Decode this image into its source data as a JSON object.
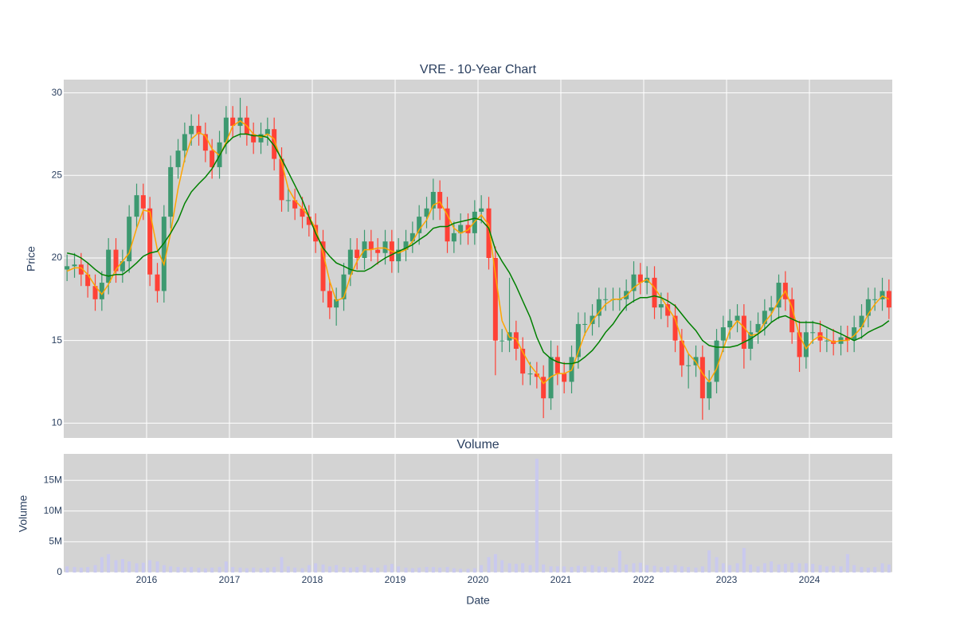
{
  "chart_data": [
    {
      "type": "candlestick",
      "title": "VRE - 10-Year Chart",
      "ylabel": "Price",
      "increasing_color": "#3d9970",
      "decreasing_color": "#ff4136",
      "background": "#d3d3d3",
      "grid": true,
      "xlim": [
        2015.0,
        2025.0
      ],
      "xticks": [
        2016,
        2017,
        2018,
        2019,
        2020,
        2021,
        2022,
        2023,
        2024
      ],
      "ylim": [
        9.1,
        30.8
      ],
      "yticks": [
        10,
        15,
        20,
        25,
        30
      ],
      "x": [
        2015.04,
        2015.13,
        2015.21,
        2015.29,
        2015.38,
        2015.46,
        2015.54,
        2015.63,
        2015.71,
        2015.79,
        2015.88,
        2015.96,
        2016.04,
        2016.13,
        2016.21,
        2016.29,
        2016.38,
        2016.46,
        2016.54,
        2016.63,
        2016.71,
        2016.79,
        2016.88,
        2016.96,
        2017.04,
        2017.13,
        2017.21,
        2017.29,
        2017.38,
        2017.46,
        2017.54,
        2017.63,
        2017.71,
        2017.79,
        2017.88,
        2017.96,
        2018.04,
        2018.13,
        2018.21,
        2018.29,
        2018.38,
        2018.46,
        2018.54,
        2018.63,
        2018.71,
        2018.79,
        2018.88,
        2018.96,
        2019.04,
        2019.13,
        2019.21,
        2019.29,
        2019.38,
        2019.46,
        2019.54,
        2019.63,
        2019.71,
        2019.79,
        2019.88,
        2019.96,
        2020.04,
        2020.13,
        2020.21,
        2020.29,
        2020.38,
        2020.46,
        2020.54,
        2020.63,
        2020.71,
        2020.79,
        2020.88,
        2020.96,
        2021.04,
        2021.13,
        2021.21,
        2021.29,
        2021.38,
        2021.46,
        2021.54,
        2021.63,
        2021.71,
        2021.79,
        2021.88,
        2021.96,
        2022.04,
        2022.13,
        2022.21,
        2022.29,
        2022.38,
        2022.46,
        2022.54,
        2022.63,
        2022.71,
        2022.79,
        2022.88,
        2022.96,
        2023.04,
        2023.13,
        2023.21,
        2023.29,
        2023.38,
        2023.46,
        2023.54,
        2023.63,
        2023.71,
        2023.79,
        2023.88,
        2023.96,
        2024.04,
        2024.13,
        2024.21,
        2024.29,
        2024.38,
        2024.46,
        2024.54,
        2024.63,
        2024.71,
        2024.79,
        2024.88,
        2024.96
      ],
      "open": [
        19.3,
        19.5,
        19.6,
        19.0,
        18.3,
        17.5,
        18.5,
        20.5,
        19.2,
        19.8,
        22.5,
        23.8,
        23.0,
        19.0,
        18.0,
        22.5,
        25.5,
        26.5,
        27.5,
        28.0,
        27.5,
        26.5,
        25.5,
        27.0,
        28.5,
        28.0,
        28.5,
        27.5,
        27.0,
        27.5,
        27.8,
        26.0,
        23.5,
        23.5,
        23.0,
        22.5,
        22.0,
        21.0,
        18.0,
        17.0,
        17.5,
        19.0,
        20.5,
        20.0,
        21.0,
        20.5,
        20.3,
        21.0,
        19.8,
        20.5,
        21.0,
        21.5,
        22.5,
        23.0,
        24.0,
        23.0,
        21.0,
        21.5,
        22.0,
        21.5,
        22.8,
        23.0,
        20.0,
        15.0,
        15.0,
        15.5,
        14.5,
        13.0,
        13.0,
        12.8,
        11.5,
        14.0,
        13.0,
        12.5,
        14.0,
        16.0,
        16.0,
        16.5,
        17.5,
        17.5,
        17.5,
        17.5,
        18.0,
        19.0,
        18.5,
        18.8,
        17.0,
        17.2,
        16.5,
        15.0,
        13.5,
        13.5,
        14.0,
        11.5,
        12.5,
        15.0,
        15.8,
        16.2,
        16.5,
        14.5,
        15.5,
        16.0,
        16.8,
        17.0,
        18.5,
        17.5,
        15.5,
        14.0,
        15.5,
        15.5,
        15.0,
        15.0,
        14.8,
        15.2,
        15.0,
        15.8,
        16.5,
        17.5,
        17.5,
        18.0
      ],
      "high": [
        20.2,
        20.3,
        20.3,
        19.7,
        19.0,
        19.2,
        21.2,
        21.2,
        20.5,
        23.2,
        24.5,
        24.5,
        23.7,
        19.7,
        23.2,
        26.2,
        27.2,
        28.2,
        28.7,
        28.7,
        28.2,
        27.2,
        27.7,
        29.2,
        29.2,
        29.7,
        29.2,
        28.2,
        28.2,
        28.5,
        28.5,
        26.7,
        24.2,
        24.2,
        23.7,
        23.2,
        22.7,
        21.7,
        18.7,
        18.2,
        19.7,
        21.2,
        21.2,
        21.7,
        21.7,
        21.2,
        21.7,
        21.7,
        21.2,
        21.7,
        22.2,
        23.2,
        23.7,
        24.8,
        24.7,
        23.7,
        22.2,
        22.7,
        22.7,
        23.5,
        23.8,
        23.7,
        20.7,
        15.7,
        18.8,
        16.2,
        15.2,
        13.7,
        13.7,
        13.5,
        15.0,
        14.7,
        13.7,
        14.7,
        16.7,
        16.7,
        17.2,
        18.2,
        18.2,
        18.2,
        18.2,
        18.7,
        19.8,
        19.7,
        19.5,
        19.5,
        17.9,
        17.9,
        17.2,
        15.7,
        14.2,
        14.7,
        14.7,
        13.2,
        15.7,
        16.5,
        16.9,
        17.2,
        17.2,
        16.2,
        16.7,
        17.5,
        17.7,
        19.0,
        19.2,
        18.2,
        16.2,
        16.2,
        16.2,
        16.2,
        15.7,
        15.7,
        15.9,
        15.9,
        16.5,
        17.2,
        18.2,
        18.2,
        18.8,
        18.7
      ],
      "low": [
        18.6,
        18.8,
        18.3,
        17.6,
        16.8,
        16.8,
        17.8,
        18.5,
        18.5,
        19.1,
        21.8,
        22.3,
        18.3,
        17.3,
        17.3,
        21.8,
        24.8,
        25.8,
        26.8,
        26.8,
        25.8,
        24.8,
        24.8,
        26.3,
        27.3,
        27.3,
        26.8,
        26.3,
        26.3,
        26.8,
        25.3,
        22.8,
        22.8,
        22.3,
        21.8,
        21.3,
        20.3,
        17.3,
        16.3,
        15.9,
        16.8,
        18.3,
        19.3,
        19.3,
        19.8,
        19.6,
        19.6,
        19.1,
        19.1,
        19.8,
        20.3,
        20.8,
        21.8,
        22.3,
        22.3,
        20.3,
        20.3,
        20.8,
        20.8,
        20.8,
        22.1,
        19.3,
        12.9,
        14.3,
        14.3,
        13.8,
        12.3,
        12.3,
        12.1,
        10.3,
        10.8,
        12.3,
        11.8,
        11.8,
        13.3,
        15.3,
        15.3,
        15.8,
        16.8,
        16.8,
        16.8,
        16.8,
        17.3,
        17.8,
        17.8,
        16.3,
        16.3,
        15.8,
        14.3,
        12.8,
        12.1,
        12.8,
        10.2,
        10.8,
        11.8,
        14.3,
        15.1,
        15.5,
        13.3,
        13.8,
        14.8,
        15.3,
        16.1,
        16.3,
        16.8,
        14.8,
        13.1,
        13.3,
        14.8,
        14.3,
        14.3,
        14.1,
        14.1,
        14.3,
        14.3,
        15.1,
        15.8,
        16.8,
        16.8,
        16.3
      ],
      "close": [
        19.5,
        19.6,
        19.0,
        18.3,
        17.5,
        18.5,
        20.5,
        19.2,
        19.8,
        22.5,
        23.8,
        23.0,
        19.0,
        18.0,
        22.5,
        25.5,
        26.5,
        27.5,
        28.0,
        27.5,
        26.5,
        25.5,
        27.0,
        28.5,
        28.0,
        28.5,
        27.5,
        27.0,
        27.5,
        27.8,
        26.0,
        23.5,
        23.5,
        23.0,
        22.5,
        22.0,
        21.0,
        18.0,
        17.0,
        17.5,
        19.0,
        20.5,
        20.0,
        21.0,
        20.5,
        20.3,
        21.0,
        19.8,
        20.5,
        21.0,
        21.5,
        22.5,
        23.0,
        24.0,
        23.0,
        21.0,
        21.5,
        22.0,
        21.5,
        22.8,
        23.0,
        20.0,
        15.0,
        15.0,
        15.5,
        14.5,
        13.0,
        13.0,
        12.8,
        11.5,
        14.0,
        13.0,
        12.5,
        14.0,
        16.0,
        16.0,
        16.5,
        17.5,
        17.5,
        17.5,
        17.5,
        18.0,
        19.0,
        18.5,
        18.8,
        17.0,
        17.2,
        16.5,
        15.0,
        13.5,
        13.5,
        14.0,
        11.5,
        12.5,
        15.0,
        15.8,
        16.2,
        16.5,
        14.5,
        15.5,
        16.0,
        16.8,
        17.0,
        18.5,
        17.5,
        15.5,
        14.0,
        15.5,
        15.5,
        15.0,
        15.0,
        14.8,
        15.2,
        15.0,
        15.8,
        16.5,
        17.5,
        17.5,
        18.0,
        17.0
      ],
      "lines": [
        {
          "color": "orange",
          "values": [
            19.2,
            19.4,
            19.4,
            19.0,
            18.3,
            17.8,
            18.4,
            19.3,
            19.8,
            20.3,
            21.8,
            22.9,
            22.8,
            20.5,
            19.6,
            21.5,
            24.2,
            26.0,
            27.2,
            27.6,
            27.4,
            26.6,
            26.2,
            27.0,
            28.0,
            28.3,
            28.0,
            27.5,
            27.3,
            27.5,
            27.2,
            25.8,
            24.2,
            23.5,
            23.0,
            22.5,
            21.8,
            20.3,
            18.6,
            17.4,
            17.6,
            18.9,
            19.8,
            20.5,
            20.5,
            20.6,
            20.6,
            20.4,
            20.3,
            20.5,
            21.0,
            21.7,
            22.3,
            23.2,
            23.4,
            22.6,
            21.8,
            21.5,
            21.7,
            22.2,
            22.6,
            22.0,
            19.0,
            16.2,
            15.2,
            15.1,
            14.3,
            13.5,
            13.0,
            12.4,
            12.8,
            13.0,
            13.0,
            13.2,
            14.3,
            15.4,
            16.2,
            16.7,
            17.2,
            17.5,
            17.5,
            17.7,
            18.2,
            18.5,
            18.7,
            18.2,
            17.6,
            17.0,
            16.3,
            15.0,
            14.2,
            13.7,
            13.0,
            12.5,
            13.3,
            14.5,
            15.6,
            16.2,
            15.8,
            15.3,
            15.4,
            16.1,
            16.6,
            17.4,
            18.0,
            17.0,
            15.3,
            14.5,
            15.0,
            15.3,
            15.1,
            14.9,
            15.0,
            15.0,
            15.3,
            15.8,
            16.6,
            17.2,
            17.7,
            17.5
          ]
        },
        {
          "color": "green",
          "values": [
            20.3,
            20.2,
            20.0,
            19.7,
            19.3,
            19.0,
            18.9,
            19.0,
            19.0,
            19.3,
            19.7,
            20.1,
            20.3,
            20.4,
            20.9,
            21.5,
            22.3,
            23.3,
            24.0,
            24.5,
            24.9,
            25.4,
            26.2,
            26.9,
            27.3,
            27.5,
            27.5,
            27.4,
            27.4,
            27.3,
            26.8,
            26.0,
            25.2,
            24.4,
            23.5,
            22.5,
            21.5,
            20.6,
            20.1,
            19.7,
            19.5,
            19.3,
            19.2,
            19.2,
            19.4,
            19.7,
            20.0,
            20.2,
            20.4,
            20.6,
            20.8,
            21.1,
            21.4,
            21.8,
            21.9,
            21.9,
            22.1,
            22.2,
            22.3,
            22.4,
            22.3,
            21.8,
            20.5,
            19.8,
            19.1,
            18.3,
            17.4,
            16.4,
            15.2,
            14.3,
            13.9,
            13.7,
            13.6,
            13.6,
            13.7,
            14.0,
            14.4,
            14.9,
            15.5,
            16.0,
            16.6,
            17.1,
            17.4,
            17.6,
            17.6,
            17.7,
            17.6,
            17.4,
            17.1,
            16.6,
            16.1,
            15.6,
            15.0,
            14.7,
            14.6,
            14.6,
            14.6,
            14.7,
            14.9,
            15.1,
            15.4,
            15.7,
            16.1,
            16.4,
            16.5,
            16.3,
            16.1,
            16.1,
            16.1,
            16.0,
            15.8,
            15.6,
            15.4,
            15.2,
            15.0,
            15.2,
            15.5,
            15.7,
            15.9,
            16.2
          ]
        }
      ]
    },
    {
      "type": "bar",
      "title": "Volume",
      "ylabel": "Volume",
      "xlabel": "Date",
      "color": "#c9c9ee",
      "background": "#d3d3d3",
      "grid": true,
      "xlim": [
        2015.0,
        2025.0
      ],
      "xticks": [
        2016,
        2017,
        2018,
        2019,
        2020,
        2021,
        2022,
        2023,
        2024
      ],
      "ylim": [
        0,
        19300000
      ],
      "yticks": [
        0,
        {
          "value": 5000000,
          "label": "5M"
        },
        {
          "value": 10000000,
          "label": "10M"
        },
        {
          "value": 15000000,
          "label": "15M"
        }
      ],
      "x": [
        2015.04,
        2015.13,
        2015.21,
        2015.29,
        2015.38,
        2015.46,
        2015.54,
        2015.63,
        2015.71,
        2015.79,
        2015.88,
        2015.96,
        2016.04,
        2016.13,
        2016.21,
        2016.29,
        2016.38,
        2016.46,
        2016.54,
        2016.63,
        2016.71,
        2016.79,
        2016.88,
        2016.96,
        2017.04,
        2017.13,
        2017.21,
        2017.29,
        2017.38,
        2017.46,
        2017.54,
        2017.63,
        2017.71,
        2017.79,
        2017.88,
        2017.96,
        2018.04,
        2018.13,
        2018.21,
        2018.29,
        2018.38,
        2018.46,
        2018.54,
        2018.63,
        2018.71,
        2018.79,
        2018.88,
        2018.96,
        2019.04,
        2019.13,
        2019.21,
        2019.29,
        2019.38,
        2019.46,
        2019.54,
        2019.63,
        2019.71,
        2019.79,
        2019.88,
        2019.96,
        2020.04,
        2020.13,
        2020.21,
        2020.29,
        2020.38,
        2020.46,
        2020.54,
        2020.63,
        2020.71,
        2020.79,
        2020.88,
        2020.96,
        2021.04,
        2021.13,
        2021.21,
        2021.29,
        2021.38,
        2021.46,
        2021.54,
        2021.63,
        2021.71,
        2021.79,
        2021.88,
        2021.96,
        2022.04,
        2022.13,
        2022.21,
        2022.29,
        2022.38,
        2022.46,
        2022.54,
        2022.63,
        2022.71,
        2022.79,
        2022.88,
        2022.96,
        2023.04,
        2023.13,
        2023.21,
        2023.29,
        2023.38,
        2023.46,
        2023.54,
        2023.63,
        2023.71,
        2023.79,
        2023.88,
        2023.96,
        2024.04,
        2024.13,
        2024.21,
        2024.29,
        2024.38,
        2024.46,
        2024.54,
        2024.63,
        2024.71,
        2024.79,
        2024.88,
        2024.96
      ],
      "values": [
        1000000,
        900000,
        800000,
        900000,
        1200000,
        2500000,
        3000000,
        2000000,
        2200000,
        1800000,
        1500000,
        1600000,
        2000000,
        1800000,
        1200000,
        1000000,
        900000,
        800000,
        900000,
        800000,
        700000,
        800000,
        900000,
        1800000,
        900000,
        800000,
        700000,
        800000,
        700000,
        800000,
        900000,
        2500000,
        1000000,
        800000,
        700000,
        1200000,
        1500000,
        1300000,
        1000000,
        1200000,
        900000,
        800000,
        900000,
        1200000,
        800000,
        800000,
        1200000,
        1400000,
        1000000,
        800000,
        700000,
        800000,
        900000,
        900000,
        800000,
        900000,
        700000,
        600000,
        600000,
        700000,
        1200000,
        2500000,
        3000000,
        2000000,
        1500000,
        1400000,
        1500000,
        1200000,
        18500000,
        1300000,
        1000000,
        1000000,
        1000000,
        900000,
        1100000,
        1000000,
        1200000,
        1000000,
        900000,
        800000,
        3500000,
        1300000,
        1500000,
        1600000,
        1200000,
        1100000,
        900000,
        1000000,
        1200000,
        1000000,
        900000,
        800000,
        1000000,
        3600000,
        2500000,
        1500000,
        1200000,
        1500000,
        4000000,
        1300000,
        1000000,
        1500000,
        1800000,
        1300000,
        1400000,
        1600000,
        1500000,
        1500000,
        1400000,
        1200000,
        1000000,
        1100000,
        1000000,
        3000000,
        1200000,
        900000,
        800000,
        900000,
        1500000,
        1300000
      ]
    }
  ]
}
